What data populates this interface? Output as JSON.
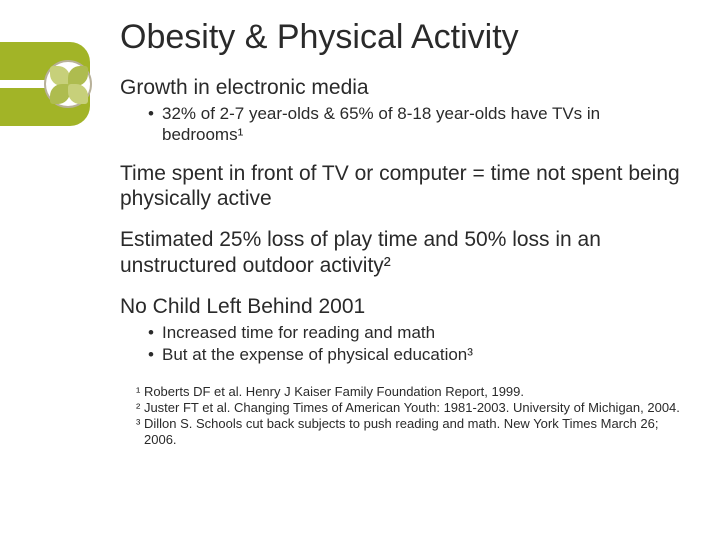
{
  "colors": {
    "accent": "#a2b427",
    "text": "#2a2a2a",
    "background": "#ffffff",
    "ring": "#b8b19a",
    "petal_light": "#c7d07a",
    "petal_dark": "#aebc4f"
  },
  "typography": {
    "title_fontsize": 34,
    "lead_fontsize": 21,
    "sub_fontsize": 17,
    "ref_fontsize": 13,
    "font_family": "Arial"
  },
  "title": "Obesity & Physical Activity",
  "blocks": [
    {
      "lead": "Growth in electronic media",
      "subs": [
        "32% of 2-7 year-olds & 65% of 8-18 year-olds have TVs in bedrooms¹"
      ]
    },
    {
      "lead": "Time spent in front of TV or computer = time not spent being physically active",
      "subs": []
    },
    {
      "lead": "Estimated 25% loss of play time and 50% loss in an unstructured outdoor activity²",
      "subs": []
    },
    {
      "lead": "No Child Left Behind 2001",
      "subs": [
        "Increased time for reading and math",
        "But at the expense of physical education³"
      ]
    }
  ],
  "references": [
    "¹ Roberts DF et al. Henry J Kaiser Family Foundation Report, 1999.",
    "² Juster FT et al. Changing Times of American Youth: 1981-2003. University of Michigan, 2004.",
    "³ Dillon S. Schools cut back subjects to push reading and math. New York Times March 26; 2006."
  ]
}
